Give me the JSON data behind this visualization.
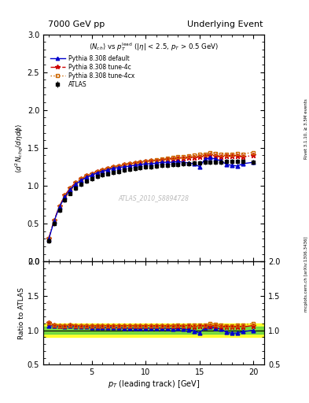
{
  "title_left": "7000 GeV pp",
  "title_right": "Underlying Event",
  "subtitle": "$\\langle N_{ch}\\rangle$ vs $p_T^{\\rm lead}$ ($|\\eta|$ < 2.5, $p_T$ > 0.5 GeV)",
  "ylabel_main": "$\\langle d^2 N_{chg}/d\\eta d\\phi\\rangle$",
  "ylabel_ratio": "Ratio to ATLAS",
  "xlabel": "$p_T$ (leading track) [GeV]",
  "right_label_top": "Rivet 3.1.10, ≥ 3.5M events",
  "right_label_bottom": "mcplots.cern.ch [arXiv:1306.3436]",
  "watermark": "ATLAS_2010_S8894728",
  "ylim_main": [
    0.0,
    3.0
  ],
  "ylim_ratio": [
    0.5,
    2.0
  ],
  "xlim": [
    0.5,
    21.0
  ],
  "atlas_x": [
    1.0,
    1.5,
    2.0,
    2.5,
    3.0,
    3.5,
    4.0,
    4.5,
    5.0,
    5.5,
    6.0,
    6.5,
    7.0,
    7.5,
    8.0,
    8.5,
    9.0,
    9.5,
    10.0,
    10.5,
    11.0,
    11.5,
    12.0,
    12.5,
    13.0,
    13.5,
    14.0,
    14.5,
    15.0,
    15.5,
    16.0,
    16.5,
    17.0,
    17.5,
    18.0,
    18.5,
    19.0,
    20.0
  ],
  "atlas_y": [
    0.27,
    0.5,
    0.68,
    0.81,
    0.9,
    0.97,
    1.02,
    1.06,
    1.09,
    1.12,
    1.14,
    1.16,
    1.18,
    1.19,
    1.21,
    1.22,
    1.23,
    1.24,
    1.25,
    1.25,
    1.26,
    1.27,
    1.27,
    1.28,
    1.28,
    1.29,
    1.29,
    1.3,
    1.3,
    1.31,
    1.31,
    1.31,
    1.31,
    1.32,
    1.32,
    1.32,
    1.32,
    1.31
  ],
  "atlas_yerr": [
    0.03,
    0.03,
    0.03,
    0.03,
    0.03,
    0.03,
    0.03,
    0.03,
    0.03,
    0.03,
    0.03,
    0.03,
    0.03,
    0.03,
    0.03,
    0.03,
    0.03,
    0.03,
    0.03,
    0.03,
    0.03,
    0.03,
    0.03,
    0.03,
    0.03,
    0.03,
    0.03,
    0.03,
    0.03,
    0.03,
    0.03,
    0.03,
    0.03,
    0.03,
    0.03,
    0.03,
    0.03,
    0.03
  ],
  "atlas_color": "#000000",
  "atlas_label": "ATLAS",
  "py_default_x": [
    1.0,
    1.5,
    2.0,
    2.5,
    3.0,
    3.5,
    4.0,
    4.5,
    5.0,
    5.5,
    6.0,
    6.5,
    7.0,
    7.5,
    8.0,
    8.5,
    9.0,
    9.5,
    10.0,
    10.5,
    11.0,
    11.5,
    12.0,
    12.5,
    13.0,
    13.5,
    14.0,
    14.5,
    15.0,
    15.5,
    16.0,
    16.5,
    17.0,
    17.5,
    18.0,
    18.5,
    19.0,
    20.0
  ],
  "py_default_y": [
    0.29,
    0.53,
    0.72,
    0.85,
    0.95,
    1.02,
    1.07,
    1.11,
    1.14,
    1.17,
    1.19,
    1.21,
    1.23,
    1.24,
    1.25,
    1.26,
    1.27,
    1.28,
    1.29,
    1.29,
    1.3,
    1.31,
    1.31,
    1.31,
    1.32,
    1.31,
    1.3,
    1.29,
    1.25,
    1.35,
    1.37,
    1.35,
    1.33,
    1.28,
    1.27,
    1.26,
    1.29,
    1.31
  ],
  "py_default_color": "#0000cc",
  "py_default_label": "Pythia 8.308 default",
  "py_4c_x": [
    1.0,
    1.5,
    2.0,
    2.5,
    3.0,
    3.5,
    4.0,
    4.5,
    5.0,
    5.5,
    6.0,
    6.5,
    7.0,
    7.5,
    8.0,
    8.5,
    9.0,
    9.5,
    10.0,
    10.5,
    11.0,
    11.5,
    12.0,
    12.5,
    13.0,
    13.5,
    14.0,
    14.5,
    15.0,
    15.5,
    16.0,
    16.5,
    17.0,
    17.5,
    18.0,
    18.5,
    19.0,
    20.0
  ],
  "py_4c_y": [
    0.3,
    0.54,
    0.73,
    0.87,
    0.97,
    1.04,
    1.09,
    1.13,
    1.16,
    1.19,
    1.21,
    1.23,
    1.25,
    1.26,
    1.28,
    1.29,
    1.3,
    1.31,
    1.32,
    1.33,
    1.33,
    1.34,
    1.35,
    1.35,
    1.36,
    1.36,
    1.37,
    1.37,
    1.38,
    1.39,
    1.4,
    1.39,
    1.38,
    1.39,
    1.39,
    1.39,
    1.38,
    1.4
  ],
  "py_4c_color": "#cc0000",
  "py_4c_label": "Pythia 8.308 tune-4c",
  "py_4cx_x": [
    1.0,
    1.5,
    2.0,
    2.5,
    3.0,
    3.5,
    4.0,
    4.5,
    5.0,
    5.5,
    6.0,
    6.5,
    7.0,
    7.5,
    8.0,
    8.5,
    9.0,
    9.5,
    10.0,
    10.5,
    11.0,
    11.5,
    12.0,
    12.5,
    13.0,
    13.5,
    14.0,
    14.5,
    15.0,
    15.5,
    16.0,
    16.5,
    17.0,
    17.5,
    18.0,
    18.5,
    19.0,
    20.0
  ],
  "py_4cx_y": [
    0.3,
    0.54,
    0.73,
    0.87,
    0.97,
    1.04,
    1.09,
    1.13,
    1.16,
    1.19,
    1.21,
    1.23,
    1.25,
    1.26,
    1.28,
    1.29,
    1.3,
    1.31,
    1.32,
    1.33,
    1.34,
    1.35,
    1.36,
    1.37,
    1.38,
    1.38,
    1.39,
    1.4,
    1.41,
    1.42,
    1.44,
    1.43,
    1.42,
    1.41,
    1.41,
    1.43,
    1.42,
    1.44
  ],
  "py_4cx_color": "#cc6600",
  "py_4cx_label": "Pythia 8.308 tune-4cx",
  "ratio_default_y": [
    1.07,
    1.06,
    1.06,
    1.05,
    1.06,
    1.05,
    1.05,
    1.05,
    1.04,
    1.04,
    1.04,
    1.04,
    1.04,
    1.04,
    1.03,
    1.03,
    1.03,
    1.03,
    1.03,
    1.03,
    1.03,
    1.03,
    1.03,
    1.02,
    1.03,
    1.02,
    1.01,
    0.99,
    0.96,
    1.04,
    1.05,
    1.03,
    1.02,
    0.97,
    0.96,
    0.96,
    0.98,
    1.0
  ],
  "ratio_4c_y": [
    1.11,
    1.08,
    1.07,
    1.07,
    1.08,
    1.07,
    1.07,
    1.07,
    1.06,
    1.06,
    1.06,
    1.06,
    1.06,
    1.06,
    1.06,
    1.06,
    1.06,
    1.06,
    1.06,
    1.06,
    1.06,
    1.06,
    1.06,
    1.06,
    1.06,
    1.06,
    1.06,
    1.05,
    1.06,
    1.06,
    1.07,
    1.06,
    1.05,
    1.05,
    1.05,
    1.05,
    1.05,
    1.07
  ],
  "ratio_4cx_y": [
    1.11,
    1.08,
    1.07,
    1.07,
    1.08,
    1.07,
    1.07,
    1.07,
    1.06,
    1.06,
    1.06,
    1.06,
    1.06,
    1.06,
    1.06,
    1.06,
    1.06,
    1.06,
    1.06,
    1.07,
    1.06,
    1.06,
    1.07,
    1.07,
    1.08,
    1.07,
    1.08,
    1.08,
    1.08,
    1.08,
    1.1,
    1.09,
    1.08,
    1.07,
    1.07,
    1.08,
    1.08,
    1.1
  ],
  "band_green": 0.05,
  "band_yellow": 0.1,
  "bg_color": "#ffffff",
  "grid_color": "#cccccc"
}
